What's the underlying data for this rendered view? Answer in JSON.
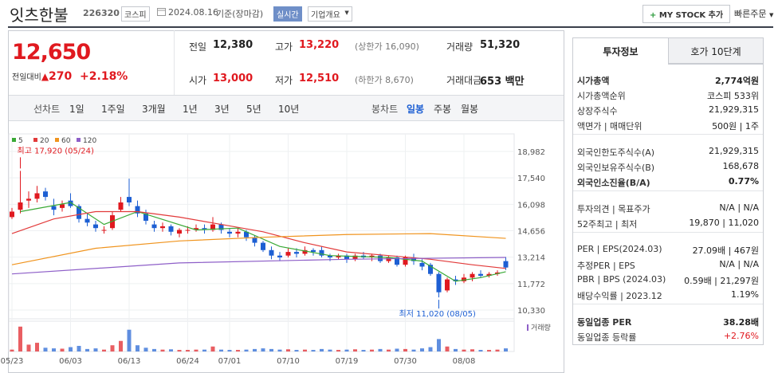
{
  "header": {
    "name": "잇츠한불",
    "code": "226320",
    "market": "코스피",
    "date": "2024.08.16",
    "status": "기준(장마감)",
    "realtime": "실시간",
    "overview": "기업개요",
    "mystock": "MY STOCK 추가",
    "quickorder": "빠른주문"
  },
  "price": {
    "current": "12,650",
    "change_label": "전일대비",
    "change": "270",
    "rate": "+2.18%"
  },
  "summary": [
    {
      "label": "전일",
      "value": "12,380",
      "color": "#222"
    },
    {
      "label": "고가",
      "value": "13,220",
      "note": "(상한가 16,090)",
      "color": "#e0191f"
    },
    {
      "label": "거래량",
      "value": "51,320",
      "color": "#222"
    },
    {
      "label": "시가",
      "value": "13,000",
      "color": "#e0191f"
    },
    {
      "label": "저가",
      "value": "12,510",
      "note": "(하한가 8,670)",
      "color": "#e0191f"
    },
    {
      "label": "거래대금",
      "value": "653 백만",
      "color": "#222"
    }
  ],
  "chart_tabs": {
    "line_label": "선차트",
    "line": [
      "1일",
      "1주일",
      "3개월",
      "1년",
      "3년",
      "5년",
      "10년"
    ],
    "candle_label": "봉차트",
    "candle": [
      "일봉",
      "주봉",
      "월봉"
    ],
    "selected": "일봉"
  },
  "chart": {
    "type": "candlestick",
    "ylim": [
      10070,
      19590
    ],
    "yticks": [
      {
        "value": 18982,
        "label": "18,982"
      },
      {
        "value": 17540,
        "label": "17,540"
      },
      {
        "value": 16098,
        "label": "16,098"
      },
      {
        "value": 14656,
        "label": "14,656"
      },
      {
        "value": 13214,
        "label": "13,214"
      },
      {
        "value": 11772,
        "label": "11,772"
      },
      {
        "value": 10330,
        "label": "10,330"
      }
    ],
    "x_labels": [
      {
        "index": 0,
        "label": "05/23"
      },
      {
        "index": 7,
        "label": "06/03"
      },
      {
        "index": 14,
        "label": "06/13"
      },
      {
        "index": 21,
        "label": "06/24"
      },
      {
        "index": 26,
        "label": "07/01"
      },
      {
        "index": 33,
        "label": "07/10"
      },
      {
        "index": 40,
        "label": "07/19"
      },
      {
        "index": 47,
        "label": "07/30"
      },
      {
        "index": 54,
        "label": "08/08"
      }
    ],
    "high_note": {
      "index": 1,
      "label": "최고 17,920 (05/24)"
    },
    "low_note": {
      "index": 51,
      "label": "최저 11,020 (08/05)"
    },
    "volume_label": "거래량",
    "vlim": [
      0,
      100
    ],
    "candles": [
      [
        15400,
        15900,
        15300,
        15700
      ],
      [
        15800,
        17920,
        15600,
        16200
      ],
      [
        16300,
        16800,
        15900,
        16400
      ],
      [
        16400,
        17100,
        16200,
        16700
      ],
      [
        16800,
        17000,
        16300,
        16500
      ],
      [
        16000,
        16400,
        15500,
        15800
      ],
      [
        15900,
        16300,
        15700,
        16100
      ],
      [
        16300,
        16700,
        15900,
        16000
      ],
      [
        16000,
        16100,
        15100,
        15300
      ],
      [
        15300,
        15600,
        14900,
        15100
      ],
      [
        15000,
        15200,
        14600,
        14800
      ],
      [
        14700,
        14900,
        14500,
        14700
      ],
      [
        14800,
        15700,
        14700,
        15500
      ],
      [
        15800,
        16500,
        15700,
        16200
      ],
      [
        16500,
        17500,
        16000,
        16200
      ],
      [
        16000,
        16300,
        15400,
        15600
      ],
      [
        15600,
        15800,
        15000,
        15200
      ],
      [
        15000,
        15200,
        14600,
        14800
      ],
      [
        14800,
        15100,
        14600,
        14900
      ],
      [
        14900,
        15000,
        14400,
        14600
      ],
      [
        14500,
        14800,
        14300,
        14700
      ],
      [
        14700,
        14900,
        14500,
        14700
      ],
      [
        14700,
        15000,
        14600,
        14800
      ],
      [
        14800,
        15000,
        14500,
        14700
      ],
      [
        14700,
        15400,
        14600,
        15000
      ],
      [
        15000,
        15100,
        14500,
        14700
      ],
      [
        14600,
        14800,
        14300,
        14500
      ],
      [
        14500,
        14800,
        14300,
        14600
      ],
      [
        14600,
        14700,
        14100,
        14300
      ],
      [
        14300,
        14400,
        13800,
        14000
      ],
      [
        14000,
        14100,
        13500,
        13600
      ],
      [
        13600,
        13800,
        13100,
        13300
      ],
      [
        13300,
        13500,
        13000,
        13200
      ],
      [
        13300,
        13700,
        13200,
        13500
      ],
      [
        13500,
        13700,
        13200,
        13400
      ],
      [
        13400,
        13800,
        13300,
        13600
      ],
      [
        13600,
        13700,
        13300,
        13500
      ],
      [
        13600,
        13800,
        13200,
        13300
      ],
      [
        13300,
        13400,
        13000,
        13200
      ],
      [
        13200,
        13400,
        13100,
        13300
      ],
      [
        13300,
        13400,
        12900,
        13100
      ],
      [
        13100,
        13400,
        13000,
        13300
      ],
      [
        13300,
        13500,
        13100,
        13200
      ],
      [
        13200,
        13400,
        13000,
        13300
      ],
      [
        13300,
        13400,
        12900,
        13000
      ],
      [
        13000,
        13300,
        12900,
        13200
      ],
      [
        13200,
        13300,
        12700,
        12800
      ],
      [
        12800,
        13300,
        12700,
        13200
      ],
      [
        13200,
        13400,
        12800,
        13000
      ],
      [
        12900,
        13100,
        12500,
        12700
      ],
      [
        12800,
        12900,
        12200,
        12300
      ],
      [
        12300,
        12400,
        11020,
        11300
      ],
      [
        11400,
        12100,
        11300,
        12000
      ],
      [
        12000,
        12200,
        11700,
        11900
      ],
      [
        11900,
        12300,
        11800,
        12100
      ],
      [
        12100,
        12400,
        11900,
        12300
      ],
      [
        12300,
        12500,
        12100,
        12200
      ],
      [
        12200,
        12400,
        12100,
        12300
      ],
      [
        12300,
        12500,
        12200,
        12380
      ],
      [
        13000,
        13220,
        12510,
        12650
      ]
    ],
    "volume": [
      6,
      80,
      22,
      28,
      12,
      10,
      9,
      14,
      18,
      8,
      10,
      6,
      20,
      34,
      70,
      20,
      12,
      8,
      6,
      7,
      5,
      5,
      6,
      6,
      16,
      6,
      5,
      5,
      6,
      8,
      10,
      8,
      6,
      7,
      5,
      6,
      5,
      8,
      6,
      5,
      6,
      7,
      5,
      6,
      8,
      6,
      9,
      8,
      6,
      10,
      14,
      40,
      16,
      8,
      6,
      7,
      5,
      5,
      6,
      10
    ],
    "ma": [
      {
        "name": "5",
        "color": "#39a935",
        "idx": [
          1,
          7,
          11,
          15,
          22,
          27,
          32,
          38,
          45,
          49,
          53,
          56,
          59
        ],
        "values": [
          15700,
          16200,
          15000,
          15700,
          14700,
          14800,
          13800,
          13300,
          13200,
          13000,
          11900,
          12100,
          12420
        ]
      },
      {
        "name": "20",
        "color": "#e23a3a",
        "idx": [
          0,
          5,
          10,
          15,
          20,
          25,
          30,
          35,
          40,
          45,
          50,
          55,
          59
        ],
        "values": [
          14500,
          15300,
          15700,
          15700,
          15400,
          15000,
          14600,
          14000,
          13500,
          13300,
          13100,
          12800,
          12600
        ]
      },
      {
        "name": "60",
        "color": "#f0941e",
        "idx": [
          0,
          10,
          20,
          30,
          40,
          50,
          59
        ],
        "values": [
          12800,
          13700,
          14100,
          14300,
          14450,
          14500,
          14240
        ]
      },
      {
        "name": "120",
        "color": "#8e5fc8",
        "idx": [
          0,
          20,
          40,
          59
        ],
        "values": [
          12300,
          12900,
          13100,
          13200
        ]
      }
    ]
  },
  "info": {
    "tabs": [
      "투자정보",
      "호가 10단계"
    ],
    "sections": [
      [
        {
          "label": "시가총액",
          "value": "2,774억원",
          "bold": true
        },
        {
          "label": "시가총액순위",
          "value": "코스피 533위"
        },
        {
          "label": "상장주식수",
          "value": "21,929,315"
        },
        {
          "label": "액면가 | 매매단위",
          "value": "500원 | 1주"
        }
      ],
      [
        {
          "label": "외국인한도주식수(A)",
          "value": "21,929,315"
        },
        {
          "label": "외국인보유주식수(B)",
          "value": "168,678"
        },
        {
          "label": "외국인소진율(B/A)",
          "value": "0.77%",
          "bold": true
        }
      ],
      [
        {
          "label": "투자의견 | 목표주가",
          "value": "N/A | N/A"
        },
        {
          "label": "52주최고 | 최저",
          "value": "19,870 | 11,020"
        }
      ],
      [
        {
          "label": "PER | EPS(2024.03)",
          "value": "27.09배 | 467원"
        },
        {
          "label": "추정PER | EPS",
          "value": "N/A | N/A"
        },
        {
          "label": "PBR | BPS (2024.03)",
          "value": "0.59배 | 21,297원"
        },
        {
          "label": "배당수익률 | 2023.12",
          "value": "1.19%"
        }
      ],
      [
        {
          "label": "동일업종 PER",
          "value": "38.28배",
          "bold": true
        },
        {
          "label": "동일업종 등락률",
          "value": "+2.76%",
          "red": true
        }
      ]
    ]
  }
}
